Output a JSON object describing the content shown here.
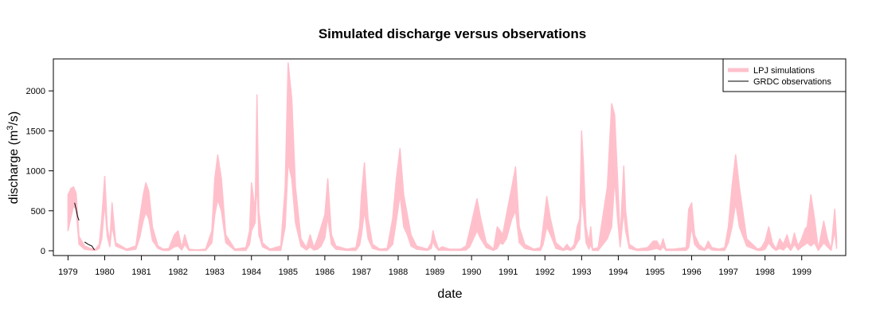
{
  "chart_data": {
    "type": "area",
    "title": "Simulated discharge versus observations",
    "xlabel": "date",
    "ylabel": {
      "prefix": "discharge (m",
      "superscript": "3",
      "suffix": "/s)"
    },
    "xlim": [
      1978.6,
      2000.2
    ],
    "ylim": [
      -60,
      2400
    ],
    "x_ticks": [
      1979,
      1980,
      1981,
      1982,
      1983,
      1984,
      1985,
      1986,
      1987,
      1988,
      1989,
      1990,
      1991,
      1992,
      1993,
      1994,
      1995,
      1996,
      1997,
      1998,
      1999
    ],
    "x_tick_labels": [
      "1979",
      "1980",
      "1981",
      "1982",
      "1983",
      "1984",
      "1985",
      "1986",
      "1987",
      "1988",
      "1989",
      "1990",
      "1991",
      "1992",
      "1993",
      "1994",
      "1995",
      "1996",
      "1997",
      "1998",
      "1999"
    ],
    "y_ticks": [
      0,
      500,
      1000,
      1500,
      2000
    ],
    "y_tick_labels": [
      "0",
      "500",
      "1000",
      "1500",
      "2000"
    ],
    "grid": false,
    "legend": {
      "position": "top-right",
      "entries": [
        {
          "label": "LPJ simulations",
          "color": "#ffc0cb",
          "style": "thick-line"
        },
        {
          "label": "GRDC observations",
          "color": "#000000",
          "style": "line"
        }
      ]
    },
    "series": [
      {
        "name": "LPJ simulations",
        "kind": "band",
        "color": "#ffc0cb",
        "x": [
          1979.0,
          1979.08,
          1979.15,
          1979.22,
          1979.3,
          1979.45,
          1979.6,
          1979.75,
          1979.85,
          1979.92,
          1980.0,
          1980.07,
          1980.14,
          1980.2,
          1980.3,
          1980.6,
          1980.85,
          1980.95,
          1981.05,
          1981.12,
          1981.2,
          1981.3,
          1981.45,
          1981.6,
          1981.75,
          1981.9,
          1982.0,
          1982.1,
          1982.18,
          1982.3,
          1982.5,
          1982.75,
          1982.92,
          1983.0,
          1983.08,
          1983.18,
          1983.3,
          1983.55,
          1983.85,
          1983.95,
          1984.0,
          1984.1,
          1984.15,
          1984.2,
          1984.3,
          1984.5,
          1984.8,
          1984.92,
          1985.0,
          1985.1,
          1985.2,
          1985.35,
          1985.5,
          1985.6,
          1985.7,
          1985.8,
          1985.9,
          1986.0,
          1986.08,
          1986.18,
          1986.3,
          1986.6,
          1986.85,
          1986.95,
          1987.0,
          1987.08,
          1987.18,
          1987.3,
          1987.5,
          1987.7,
          1987.85,
          1987.95,
          1988.05,
          1988.15,
          1988.25,
          1988.35,
          1988.5,
          1988.8,
          1988.9,
          1988.95,
          1989.0,
          1989.1,
          1989.2,
          1989.4,
          1989.7,
          1989.85,
          1989.95,
          1990.05,
          1990.15,
          1990.25,
          1990.4,
          1990.6,
          1990.7,
          1990.78,
          1990.85,
          1990.95,
          1991.1,
          1991.2,
          1991.3,
          1991.45,
          1991.7,
          1991.88,
          1991.95,
          1992.05,
          1992.15,
          1992.3,
          1992.5,
          1992.6,
          1992.7,
          1992.8,
          1992.88,
          1992.95,
          1993.0,
          1993.05,
          1993.12,
          1993.2,
          1993.25,
          1993.3,
          1993.45,
          1993.7,
          1993.82,
          1993.9,
          1993.98,
          1994.05,
          1994.15,
          1994.2,
          1994.3,
          1994.5,
          1994.8,
          1994.95,
          1995.05,
          1995.15,
          1995.22,
          1995.3,
          1995.5,
          1995.85,
          1995.92,
          1996.0,
          1996.08,
          1996.2,
          1996.35,
          1996.45,
          1996.55,
          1996.75,
          1996.9,
          1997.0,
          1997.1,
          1997.2,
          1997.3,
          1997.5,
          1997.8,
          1997.9,
          1998.0,
          1998.1,
          1998.2,
          1998.3,
          1998.4,
          1998.5,
          1998.6,
          1998.7,
          1998.8,
          1998.9,
          1999.0,
          1999.1,
          1999.15,
          1999.25,
          1999.35,
          1999.45,
          1999.6,
          1999.7,
          1999.8,
          1999.9,
          1999.95
        ],
        "low": [
          250,
          420,
          560,
          520,
          80,
          20,
          10,
          5,
          30,
          150,
          600,
          180,
          50,
          320,
          60,
          5,
          20,
          160,
          380,
          480,
          400,
          130,
          30,
          5,
          5,
          50,
          60,
          10,
          80,
          5,
          5,
          5,
          100,
          450,
          640,
          500,
          100,
          5,
          5,
          80,
          250,
          350,
          900,
          200,
          50,
          5,
          5,
          300,
          1100,
          900,
          350,
          60,
          10,
          50,
          10,
          20,
          60,
          160,
          420,
          80,
          20,
          5,
          5,
          70,
          200,
          500,
          150,
          30,
          5,
          5,
          80,
          380,
          700,
          300,
          200,
          60,
          20,
          5,
          30,
          120,
          60,
          5,
          10,
          5,
          5,
          10,
          50,
          150,
          250,
          150,
          40,
          5,
          30,
          100,
          80,
          150,
          400,
          500,
          100,
          30,
          5,
          5,
          80,
          300,
          200,
          30,
          5,
          20,
          5,
          30,
          100,
          150,
          700,
          500,
          100,
          20,
          80,
          5,
          5,
          150,
          300,
          900,
          400,
          50,
          500,
          250,
          30,
          5,
          5,
          20,
          30,
          10,
          50,
          5,
          5,
          5,
          40,
          300,
          80,
          20,
          5,
          40,
          10,
          5,
          5,
          100,
          300,
          600,
          300,
          60,
          5,
          5,
          20,
          100,
          40,
          5,
          30,
          10,
          60,
          5,
          80,
          10,
          50,
          80,
          100,
          60,
          100,
          5,
          100,
          50,
          5,
          250,
          30
        ],
        "high": [
          700,
          780,
          800,
          720,
          180,
          60,
          30,
          20,
          80,
          400,
          930,
          300,
          100,
          600,
          100,
          20,
          60,
          400,
          700,
          850,
          750,
          300,
          60,
          20,
          30,
          200,
          250,
          40,
          200,
          20,
          10,
          20,
          250,
          900,
          1200,
          900,
          200,
          20,
          40,
          250,
          850,
          500,
          1950,
          500,
          100,
          20,
          60,
          800,
          2350,
          1900,
          800,
          150,
          40,
          200,
          40,
          150,
          300,
          450,
          900,
          200,
          60,
          20,
          40,
          300,
          700,
          1100,
          400,
          80,
          20,
          30,
          400,
          900,
          1280,
          700,
          450,
          200,
          60,
          20,
          100,
          250,
          150,
          20,
          50,
          20,
          20,
          60,
          250,
          450,
          650,
          400,
          100,
          20,
          300,
          250,
          200,
          450,
          800,
          1050,
          300,
          80,
          20,
          40,
          300,
          680,
          400,
          100,
          20,
          80,
          20,
          80,
          300,
          400,
          1500,
          1100,
          300,
          100,
          300,
          20,
          40,
          800,
          1840,
          1700,
          900,
          150,
          1060,
          500,
          80,
          20,
          40,
          120,
          120,
          40,
          150,
          20,
          20,
          40,
          520,
          600,
          200,
          80,
          20,
          120,
          40,
          20,
          40,
          300,
          800,
          1200,
          800,
          150,
          20,
          40,
          120,
          300,
          100,
          20,
          150,
          80,
          200,
          40,
          220,
          60,
          150,
          280,
          300,
          700,
          400,
          20,
          370,
          150,
          20,
          520,
          150
        ]
      },
      {
        "name": "GRDC observations",
        "kind": "line",
        "color": "#000000",
        "segments": [
          {
            "x": [
              1979.18,
              1979.22,
              1979.26,
              1979.3
            ],
            "y": [
              600,
              520,
              430,
              380
            ]
          },
          {
            "x": [
              1979.45,
              1979.55,
              1979.65,
              1979.72
            ],
            "y": [
              110,
              80,
              60,
              10
            ]
          }
        ]
      }
    ]
  }
}
